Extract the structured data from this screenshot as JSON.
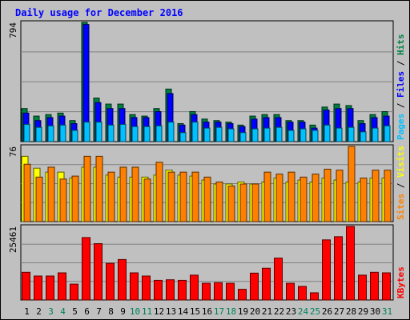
{
  "chart_data": {
    "type": "bar",
    "title": "Daily usage for December 2016",
    "categories": [
      "1",
      "2",
      "3",
      "4",
      "5",
      "6",
      "7",
      "8",
      "9",
      "10",
      "11",
      "12",
      "13",
      "14",
      "15",
      "16",
      "17",
      "18",
      "19",
      "20",
      "21",
      "22",
      "23",
      "24",
      "25",
      "26",
      "27",
      "28",
      "29",
      "30",
      "31"
    ],
    "weekend_days": [
      "3",
      "4",
      "10",
      "11",
      "17",
      "18",
      "24",
      "25",
      "31"
    ],
    "panels": [
      {
        "id": "hits",
        "ymax_label": "794",
        "ylim": [
          0,
          794
        ],
        "legend": [
          {
            "text": "Pages",
            "color": "#00c0ff"
          },
          {
            "text": " / ",
            "color": "#000000"
          },
          {
            "text": "Files",
            "color": "#0000ff"
          },
          {
            "text": " / ",
            "color": "#000000"
          },
          {
            "text": "Hits",
            "color": "#008040"
          }
        ],
        "series": [
          {
            "name": "Hits",
            "color": "#008040",
            "values": [
              220,
              170,
              180,
              190,
              140,
              794,
              290,
              250,
              250,
              180,
              170,
              220,
              350,
              120,
              200,
              150,
              140,
              130,
              110,
              170,
              180,
              180,
              140,
              140,
              110,
              230,
              250,
              240,
              140,
              180,
              200
            ]
          },
          {
            "name": "Files",
            "color": "#0000ff",
            "values": [
              190,
              140,
              160,
              170,
              120,
              780,
              260,
              220,
              220,
              160,
              160,
              200,
              320,
              110,
              180,
              130,
              130,
              120,
              100,
              150,
              160,
              160,
              130,
              130,
              90,
              210,
              220,
              220,
              120,
              160,
              170
            ]
          },
          {
            "name": "Pages",
            "color": "#00c0ff",
            "values": [
              115,
              95,
              105,
              110,
              75,
              130,
              130,
              110,
              115,
              100,
              100,
              105,
              130,
              60,
              130,
              90,
              95,
              85,
              60,
              85,
              90,
              95,
              75,
              85,
              75,
              110,
              90,
              95,
              65,
              90,
              105
            ]
          }
        ]
      },
      {
        "id": "visits",
        "ymax_label": "76",
        "ylim": [
          0,
          76
        ],
        "legend": [
          {
            "text": "Sites",
            "color": "#ff8000"
          },
          {
            "text": " / ",
            "color": "#000000"
          },
          {
            "text": "Visits",
            "color": "#ffff00"
          }
        ],
        "series": [
          {
            "name": "Visits",
            "color": "#ffff00",
            "values": [
              66,
              54,
              50,
              50,
              44,
              55,
              55,
              47,
              45,
              45,
              45,
              47,
              52,
              47,
              46,
              42,
              38,
              38,
              40,
              38,
              40,
              44,
              40,
              42,
              40,
              44,
              42,
              40,
              40,
              44,
              44
            ]
          },
          {
            "name": "Sites",
            "color": "#ff8000",
            "values": [
              58,
              45,
              55,
              43,
              46,
              66,
              66,
              50,
              55,
              55,
              43,
              60,
              50,
              50,
              50,
              45,
              40,
              36,
              38,
              38,
              50,
              48,
              50,
              45,
              48,
              53,
              52,
              76,
              44,
              52,
              52
            ]
          }
        ]
      },
      {
        "id": "kbytes",
        "ymax_label": "25461",
        "ylim": [
          0,
          25461
        ],
        "legend": [
          {
            "text": "KBytes",
            "color": "#ff0000"
          }
        ],
        "series": [
          {
            "name": "KBytes",
            "color": "#ff0000",
            "values": [
              9600,
              8300,
              8300,
              9400,
              5500,
              21600,
              19500,
              12700,
              14000,
              9400,
              8300,
              6800,
              7000,
              6800,
              8600,
              5800,
              6000,
              5800,
              3700,
              9300,
              11000,
              14500,
              5800,
              4700,
              2500,
              20800,
              21900,
              25461,
              8600,
              9600,
              9400
            ]
          }
        ]
      }
    ]
  }
}
